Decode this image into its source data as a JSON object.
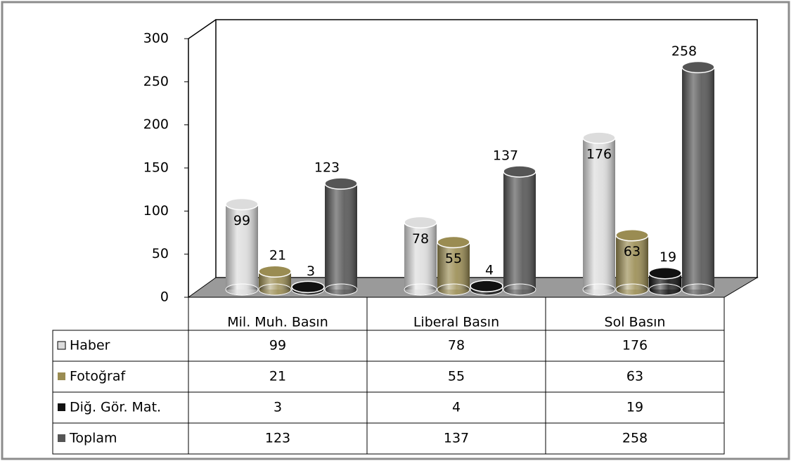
{
  "chart_data": {
    "type": "bar",
    "categories": [
      "Mil. Muh. Basın",
      "Liberal Basın",
      "Sol Basın"
    ],
    "series": [
      {
        "name": "Haber",
        "color": "#dcdcdc",
        "values": [
          99,
          78,
          176
        ]
      },
      {
        "name": "Fotoğraf",
        "color": "#9a8c52",
        "values": [
          21,
          55,
          63
        ]
      },
      {
        "name": "Diğ. Gör. Mat.",
        "color": "#111111",
        "values": [
          3,
          4,
          19
        ]
      },
      {
        "name": "Toplam",
        "color": "#555555",
        "values": [
          123,
          137,
          258
        ]
      }
    ],
    "ylim": [
      0,
      300
    ],
    "yticks": [
      0,
      50,
      100,
      150,
      200,
      250,
      300
    ]
  }
}
